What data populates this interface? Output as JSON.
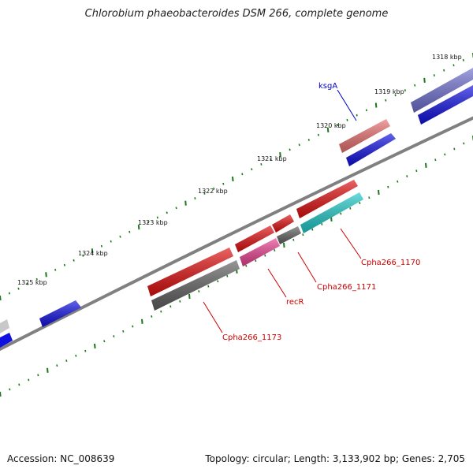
{
  "title": "Chlorobium phaeobacteroides DSM 266, complete genome",
  "footer": {
    "accession": "Accession: NC_008639",
    "stats": "Topology: circular; Length: 3,133,902 bp; Genes: 2,705"
  },
  "scale_labels": [
    "1318 kbp",
    "1319 kbp",
    "1320 kbp",
    "1321 kbp",
    "1322 kbp",
    "1323 kbp",
    "1324 kbp",
    "1325 kbp"
  ],
  "gene_labels": [
    {
      "name": "ksgA",
      "color": "#0000cc"
    },
    {
      "name": "Cpha266_1170",
      "color": "#cc0000"
    },
    {
      "name": "Cpha266_1171",
      "color": "#cc0000"
    },
    {
      "name": "recR",
      "color": "#cc0000"
    },
    {
      "name": "Cpha266_1173",
      "color": "#cc0000"
    }
  ],
  "colors": {
    "backbone": "#808080",
    "tick": "#1a7a1a",
    "cds_blue": "#1010e0",
    "cds_red": "#e01010",
    "cds_gray": "#606060",
    "cds_pink": "#e84090",
    "cds_cyan": "#20c8c8",
    "cds_salmon": "#e87070",
    "cds_purple": "#7070d0"
  }
}
